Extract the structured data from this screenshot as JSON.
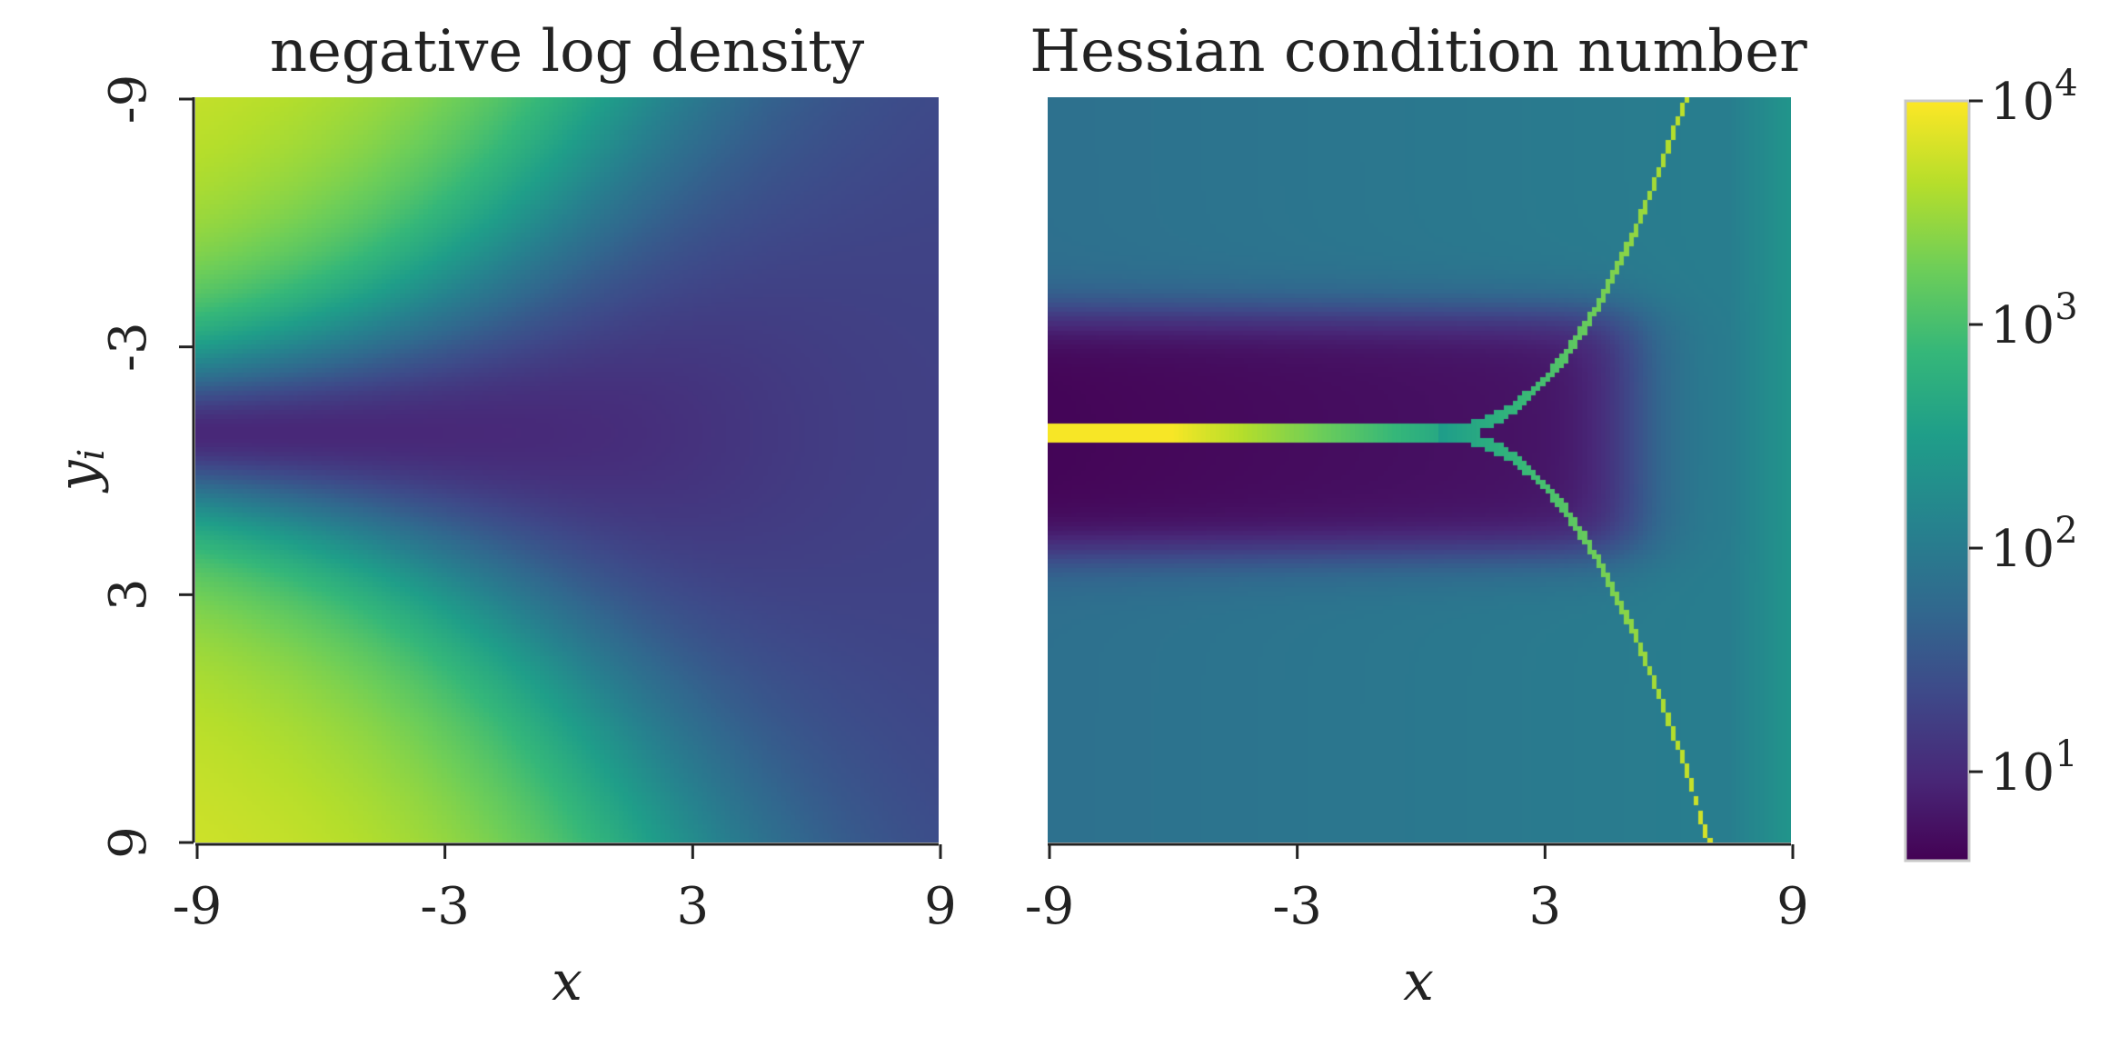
{
  "chart_data": [
    {
      "type": "heatmap",
      "title": "negative log density",
      "xlabel": "x",
      "ylabel": "y_i",
      "xlim": [
        -9,
        9
      ],
      "ylim": [
        -9,
        9
      ],
      "x_ticks": [
        "-9",
        "-3",
        "3",
        "9"
      ],
      "y_ticks": [
        "-9",
        "-3",
        "3",
        "9"
      ],
      "colormap": "viridis"
    },
    {
      "type": "heatmap",
      "title": "Hessian condition number",
      "xlabel": "x",
      "xlim": [
        -9,
        9
      ],
      "ylim": [
        -9,
        9
      ],
      "x_ticks": [
        "-9",
        "-3",
        "3",
        "9"
      ],
      "colormap": "viridis"
    }
  ],
  "colorbar": {
    "scale": "log",
    "range": [
      4,
      10000
    ],
    "ticks": [
      {
        "base": "10",
        "exp": "4",
        "value": 10000
      },
      {
        "base": "10",
        "exp": "3",
        "value": 1000
      },
      {
        "base": "10",
        "exp": "2",
        "value": 100
      },
      {
        "base": "10",
        "exp": "1",
        "value": 10
      }
    ],
    "colors": [
      "#440154",
      "#482878",
      "#3e4989",
      "#31688e",
      "#26828e",
      "#1f9e89",
      "#35b779",
      "#6ece58",
      "#b5de2b",
      "#fde725"
    ]
  }
}
